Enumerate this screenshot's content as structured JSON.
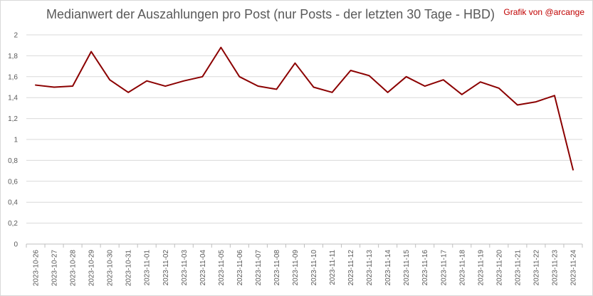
{
  "chart_data": {
    "type": "line",
    "title": "Medianwert der Auszahlungen pro Post (nur Posts - der letzten 30 Tage - HBD)",
    "credit": "Grafik von @arcange",
    "xlabel": "",
    "ylabel": "",
    "ylim": [
      0,
      2
    ],
    "yticks": [
      "0",
      "0,2",
      "0,4",
      "0,6",
      "0,8",
      "1",
      "1,2",
      "1,4",
      "1,6",
      "1,8",
      "2"
    ],
    "grid": true,
    "line_color": "#8b0000",
    "categories": [
      "2023-10-26",
      "2023-10-27",
      "2023-10-28",
      "2023-10-29",
      "2023-10-30",
      "2023-10-31",
      "2023-11-01",
      "2023-11-02",
      "2023-11-03",
      "2023-11-04",
      "2023-11-05",
      "2023-11-06",
      "2023-11-07",
      "2023-11-08",
      "2023-11-09",
      "2023-11-10",
      "2023-11-11",
      "2023-11-12",
      "2023-11-13",
      "2023-11-14",
      "2023-11-15",
      "2023-11-16",
      "2023-11-17",
      "2023-11-18",
      "2023-11-19",
      "2023-11-20",
      "2023-11-21",
      "2023-11-22",
      "2023-11-23",
      "2023-11-24"
    ],
    "series": [
      {
        "values": [
          1.52,
          1.5,
          1.51,
          1.84,
          1.57,
          1.45,
          1.56,
          1.51,
          1.56,
          1.6,
          1.88,
          1.6,
          1.51,
          1.48,
          1.73,
          1.5,
          1.45,
          1.66,
          1.61,
          1.45,
          1.6,
          1.51,
          1.57,
          1.43,
          1.55,
          1.49,
          1.33,
          1.36,
          1.42,
          0.71
        ]
      }
    ]
  }
}
